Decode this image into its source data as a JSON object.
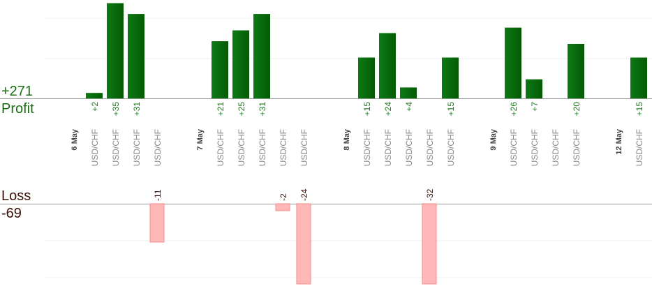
{
  "summary": {
    "profit_total": "+271",
    "profit_label": "Profit",
    "loss_label": "Loss",
    "loss_total": "-69"
  },
  "chart_data": {
    "type": "bar",
    "title": "",
    "xlabel": "",
    "ylabel": "",
    "colors": {
      "profit": "#0f6a0f",
      "loss": "#ffb8b8",
      "loss_border": "#f08c8c",
      "axis": "#999999"
    },
    "categories": [
      "6 May",
      "USD/CHF",
      "USD/CHF",
      "USD/CHF",
      "USD/CHF",
      "",
      "7 May",
      "USD/CHF",
      "USD/CHF",
      "USD/CHF",
      "USD/CHF",
      "USD/CHF",
      "",
      "8 May",
      "USD/CHF",
      "USD/CHF",
      "USD/CHF",
      "USD/CHF",
      "USD/CHF",
      "",
      "9 May",
      "USD/CHF",
      "USD/CHF",
      "USD/CHF",
      "USD/CHF",
      "",
      "12 May",
      "USD/CHF"
    ],
    "date_labels": [
      "6 May",
      "7 May",
      "8 May",
      "9 May",
      "12 May"
    ],
    "trades": [
      {
        "date": "6 May",
        "pair": "USD/CHF",
        "value": 2,
        "label": "+2"
      },
      {
        "date": "6 May",
        "pair": "USD/CHF",
        "value": 35,
        "label": "+35"
      },
      {
        "date": "6 May",
        "pair": "USD/CHF",
        "value": 31,
        "label": "+31"
      },
      {
        "date": "6 May",
        "pair": "USD/CHF",
        "value": -11,
        "label": "-11"
      },
      {
        "date": "7 May",
        "pair": "USD/CHF",
        "value": 21,
        "label": "+21"
      },
      {
        "date": "7 May",
        "pair": "USD/CHF",
        "value": 25,
        "label": "+25"
      },
      {
        "date": "7 May",
        "pair": "USD/CHF",
        "value": 31,
        "label": "+31"
      },
      {
        "date": "7 May",
        "pair": "USD/CHF",
        "value": -2,
        "label": "-2"
      },
      {
        "date": "7 May",
        "pair": "USD/CHF",
        "value": -24,
        "label": "-24"
      },
      {
        "date": "8 May",
        "pair": "USD/CHF",
        "value": 15,
        "label": "+15"
      },
      {
        "date": "8 May",
        "pair": "USD/CHF",
        "value": 24,
        "label": "+24"
      },
      {
        "date": "8 May",
        "pair": "USD/CHF",
        "value": 4,
        "label": "+4"
      },
      {
        "date": "8 May",
        "pair": "USD/CHF",
        "value": -32,
        "label": "-32"
      },
      {
        "date": "8 May",
        "pair": "USD/CHF",
        "value": 15,
        "label": "+15"
      },
      {
        "date": "9 May",
        "pair": "USD/CHF",
        "value": 26,
        "label": "+26"
      },
      {
        "date": "9 May",
        "pair": "USD/CHF",
        "value": 7,
        "label": "+7"
      },
      {
        "date": "9 May",
        "pair": "USD/CHF",
        "value": 0,
        "label": ""
      },
      {
        "date": "9 May",
        "pair": "USD/CHF",
        "value": 20,
        "label": "+20"
      },
      {
        "date": "12 May",
        "pair": "USD/CHF",
        "value": 15,
        "label": "+15"
      }
    ]
  }
}
